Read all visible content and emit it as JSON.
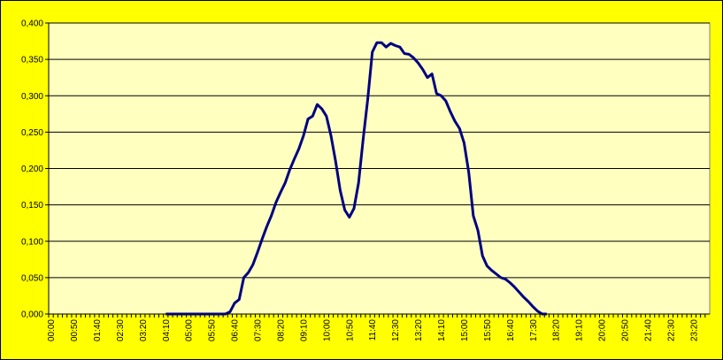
{
  "chart_data": {
    "type": "line",
    "categories": [
      "00:00",
      null,
      null,
      null,
      null,
      "00:50",
      null,
      null,
      null,
      null,
      "01:40",
      null,
      null,
      null,
      null,
      "02:30",
      null,
      null,
      null,
      null,
      "03:20",
      null,
      null,
      null,
      null,
      "04:10",
      null,
      null,
      null,
      null,
      "05:00",
      null,
      null,
      null,
      null,
      "05:50",
      null,
      null,
      null,
      null,
      "06:40",
      null,
      null,
      null,
      null,
      "07:30",
      null,
      null,
      null,
      null,
      "08:20",
      null,
      null,
      null,
      null,
      "09:10",
      null,
      null,
      null,
      null,
      "10:00",
      null,
      null,
      null,
      null,
      "10:50",
      null,
      null,
      null,
      null,
      "11:40",
      null,
      null,
      null,
      null,
      "12:30",
      null,
      null,
      null,
      null,
      "13:20",
      null,
      null,
      null,
      null,
      "14:10",
      null,
      null,
      null,
      null,
      "15:00",
      null,
      null,
      null,
      null,
      "15:50",
      null,
      null,
      null,
      null,
      "16:40",
      null,
      null,
      null,
      null,
      "17:30",
      null,
      null,
      null,
      null,
      "18:20",
      null,
      null,
      null,
      null,
      "19:10",
      null,
      null,
      null,
      null,
      "20:00",
      null,
      null,
      null,
      null,
      "20:50",
      null,
      null,
      null,
      null,
      "21:40",
      null,
      null,
      null,
      null,
      "22:30",
      null,
      null,
      null,
      null,
      "23:20",
      null,
      null,
      null
    ],
    "series": [
      {
        "color": "#000080",
        "values": [
          null,
          null,
          null,
          null,
          null,
          null,
          null,
          null,
          null,
          null,
          null,
          null,
          null,
          null,
          null,
          null,
          null,
          null,
          null,
          null,
          null,
          null,
          null,
          null,
          null,
          0,
          0,
          0,
          0,
          0,
          0,
          0,
          0,
          0,
          0,
          0,
          0,
          0,
          0,
          0.003,
          0.015,
          0.02,
          0.05,
          0.057,
          0.068,
          0.085,
          0.103,
          0.12,
          0.135,
          0.153,
          0.167,
          0.18,
          0.198,
          0.213,
          0.227,
          0.245,
          0.268,
          0.272,
          0.288,
          0.282,
          0.272,
          0.245,
          0.21,
          0.17,
          0.143,
          0.133,
          0.145,
          0.18,
          0.24,
          0.295,
          0.36,
          0.373,
          0.373,
          0.367,
          0.372,
          0.369,
          0.367,
          0.358,
          0.357,
          0.352,
          0.345,
          0.336,
          0.325,
          0.33,
          0.303,
          0.3,
          0.293,
          0.278,
          0.265,
          0.255,
          0.235,
          0.195,
          0.135,
          0.115,
          0.08,
          0.066,
          0.06,
          0.055,
          0.05,
          0.048,
          0.043,
          0.037,
          0.03,
          0.023,
          0.017,
          0.01,
          0.004,
          0,
          0,
          null,
          null,
          null,
          null,
          null,
          null,
          null,
          null,
          null,
          null,
          null,
          null,
          null,
          null,
          null,
          null,
          null,
          null,
          null,
          null,
          null,
          null,
          null,
          null,
          null,
          null,
          null,
          null,
          null,
          null,
          null,
          null,
          null,
          null,
          null
        ]
      }
    ],
    "ylim": [
      0,
      0.4
    ],
    "yticks": [
      {
        "value": 0,
        "label": "0,000"
      },
      {
        "value": 0.05,
        "label": "0,050"
      },
      {
        "value": 0.1,
        "label": "0,100"
      },
      {
        "value": 0.15,
        "label": "0,150"
      },
      {
        "value": 0.2,
        "label": "0,200"
      },
      {
        "value": 0.25,
        "label": "0,250"
      },
      {
        "value": 0.3,
        "label": "0,300"
      },
      {
        "value": 0.35,
        "label": "0,350"
      },
      {
        "value": 0.4,
        "label": "0,400"
      }
    ],
    "grid": true
  }
}
